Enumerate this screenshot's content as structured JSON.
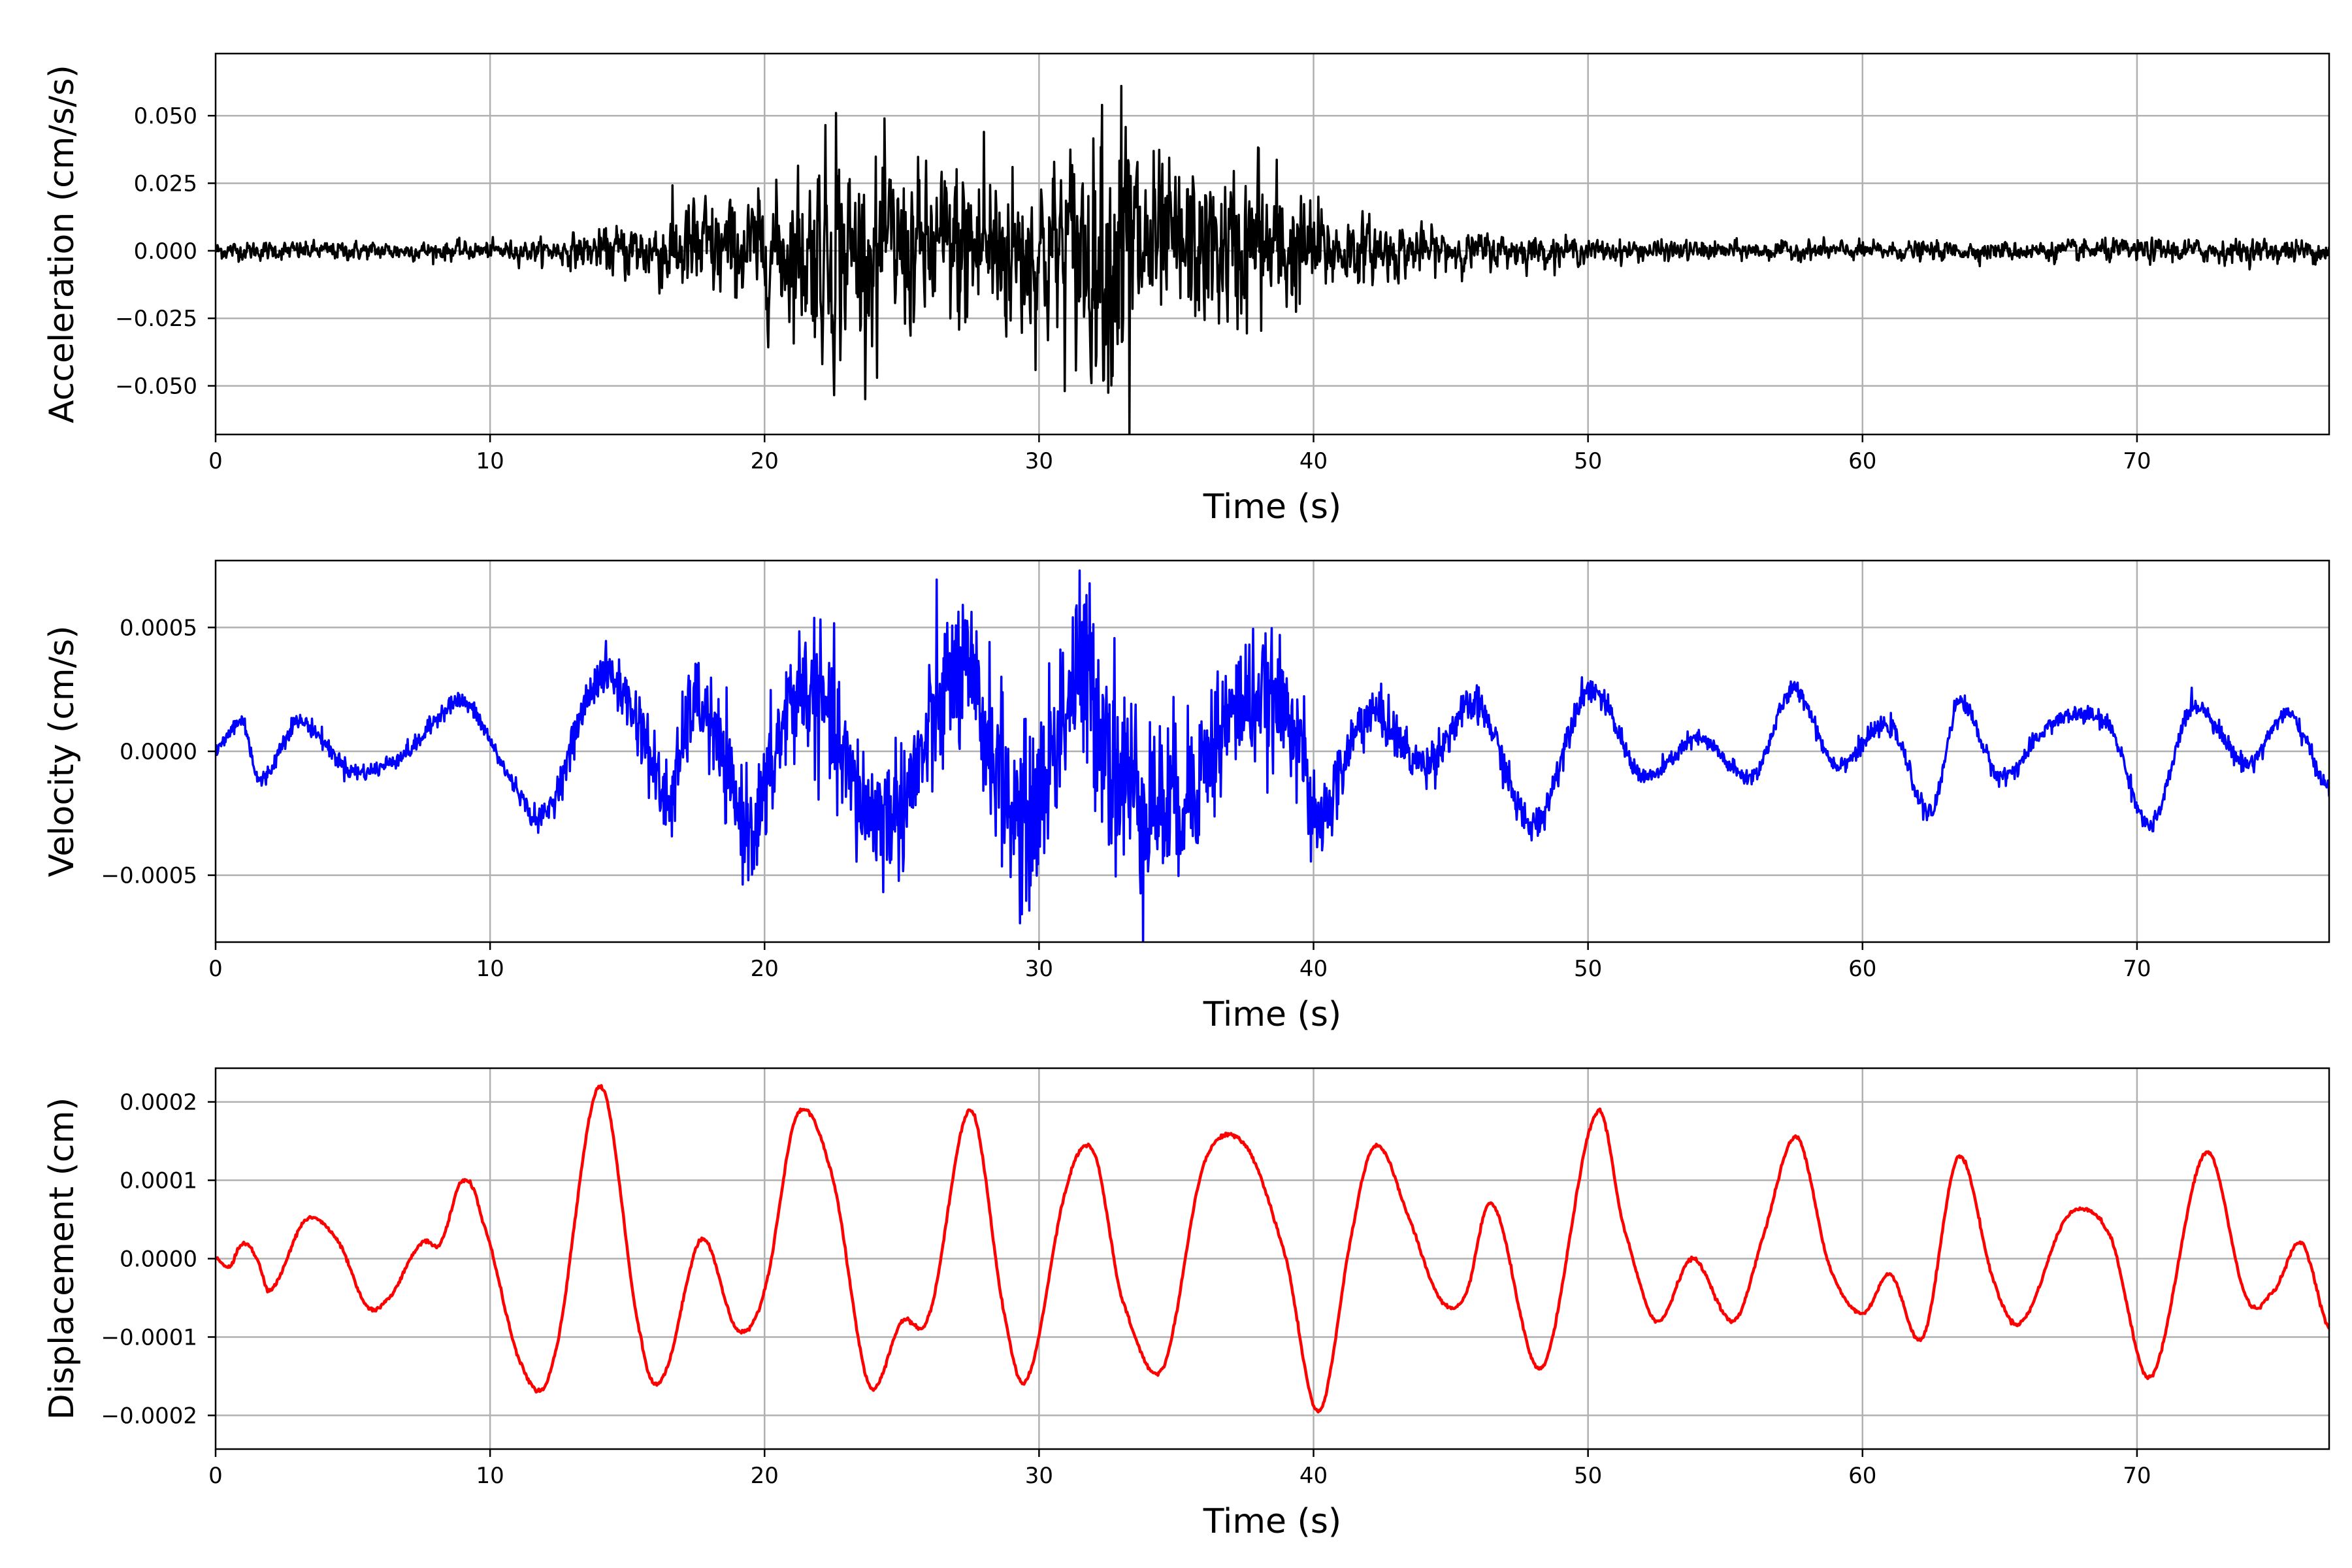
{
  "figure": {
    "background": "#ffffff",
    "grid_color": "#b0b0b0"
  },
  "chart_data": [
    {
      "type": "line",
      "title": "",
      "xlabel": "Time (s)",
      "ylabel": "Acceleration (cm/s/s)",
      "xlim": [
        0,
        77
      ],
      "ylim": [
        -0.068,
        0.073
      ],
      "grid": true,
      "x_ticks": [
        0,
        10,
        20,
        30,
        40,
        50,
        60,
        70
      ],
      "x_tick_labels": [
        "0",
        "10",
        "20",
        "30",
        "40",
        "50",
        "60",
        "70"
      ],
      "y_ticks": [
        0.05,
        0.025,
        0,
        -0.025,
        -0.05
      ],
      "y_tick_labels": [
        "0.050",
        "0.025",
        "0.000",
        "−0.025",
        "−0.050"
      ],
      "series": [
        {
          "color": "#000000",
          "x": [
            0,
            5,
            10,
            12,
            14,
            16,
            17.5,
            19,
            20.5,
            22,
            22.5,
            23.5,
            24.5,
            26,
            27.5,
            28.5,
            30,
            31.5,
            32.5,
            33.2,
            34,
            35.5,
            37,
            38,
            39,
            40,
            41,
            42,
            44,
            46,
            48,
            50,
            55,
            60,
            65,
            70,
            73,
            77
          ],
          "envelope": [
            0.004,
            0.004,
            0.004,
            0.005,
            0.009,
            0.016,
            0.025,
            0.022,
            0.028,
            0.044,
            0.05,
            0.035,
            0.04,
            0.034,
            0.044,
            0.04,
            0.038,
            0.05,
            0.056,
            0.066,
            0.04,
            0.036,
            0.033,
            0.04,
            0.032,
            0.022,
            0.017,
            0.014,
            0.01,
            0.008,
            0.007,
            0.005,
            0.004,
            0.004,
            0.004,
            0.005,
            0.005,
            0.005
          ],
          "peaks": [
            {
              "x": 22.6,
              "y": 0.051
            },
            {
              "x": 24.1,
              "y": -0.047
            },
            {
              "x": 32.3,
              "y": 0.054
            },
            {
              "x": 33.0,
              "y": 0.061
            },
            {
              "x": 33.3,
              "y": -0.068
            },
            {
              "x": 28.0,
              "y": 0.044
            },
            {
              "x": 38.0,
              "y": 0.038
            }
          ]
        }
      ]
    },
    {
      "type": "line",
      "title": "",
      "xlabel": "Time (s)",
      "ylabel": "Velocity (cm/s)",
      "xlim": [
        0,
        77
      ],
      "ylim": [
        -0.00077,
        0.00077
      ],
      "grid": true,
      "x_ticks": [
        0,
        10,
        20,
        30,
        40,
        50,
        60,
        70
      ],
      "x_tick_labels": [
        "0",
        "10",
        "20",
        "30",
        "40",
        "50",
        "60",
        "70"
      ],
      "y_ticks": [
        0.0005,
        0,
        -0.0005
      ],
      "y_tick_labels": [
        "0.0005",
        "0.0000",
        "−0.0005"
      ],
      "series": [
        {
          "color": "#0000ff",
          "x": [
            0,
            1,
            1.6,
            3,
            5,
            7,
            9,
            11,
            12,
            14,
            15.5,
            16.5,
            17.5,
            19.5,
            21,
            22,
            23.5,
            25,
            27,
            28,
            29.5,
            31.5,
            33,
            35,
            37.5,
            39.5,
            40,
            42,
            44,
            46,
            48,
            50,
            52,
            54,
            56,
            57.5,
            59,
            61,
            62.5,
            63.5,
            65,
            67,
            69,
            70.5,
            72,
            74,
            75.5,
            77
          ],
          "y": [
            0.0,
            0.00012,
            -0.00012,
            0.00012,
            -8e-05,
            0.0,
            0.0002,
            -0.00015,
            -0.00025,
            0.0003,
            0.0001,
            -0.0002,
            0.0002,
            -0.0003,
            0.0002,
            0.0002,
            -0.0002,
            -0.0002,
            0.0003,
            0.0001,
            -0.0003,
            0.0003,
            -0.0001,
            -0.0002,
            0.0002,
            0.0001,
            -0.0003,
            0.00015,
            -5e-05,
            0.00018,
            -0.0003,
            0.00025,
            -0.0001,
            5e-05,
            -0.0001,
            0.00025,
            -5e-05,
            0.0001,
            -0.00025,
            0.0002,
            -0.0001,
            0.00012,
            0.0001,
            -0.0003,
            0.00018,
            -5e-05,
            0.00015,
            -0.00015
          ],
          "noise_envelope": [
            2e-05,
            2e-05,
            2e-05,
            2e-05,
            2e-05,
            2e-05,
            2e-05,
            2e-05,
            3e-05,
            5e-05,
            8e-05,
            0.0001,
            0.0001,
            0.00012,
            0.00015,
            0.00015,
            0.00015,
            0.00015,
            0.00018,
            0.00018,
            0.0002,
            0.00022,
            0.00025,
            0.00018,
            0.00015,
            0.00012,
            0.0001,
            6e-05,
            5e-05,
            4e-05,
            4e-05,
            3e-05,
            2e-05,
            2e-05,
            2e-05,
            2e-05,
            2e-05,
            2e-05,
            2e-05,
            2e-05,
            2e-05,
            2e-05,
            2e-05,
            2e-05,
            2e-05,
            2e-05,
            2e-05,
            2e-05
          ]
        }
      ]
    },
    {
      "type": "line",
      "title": "",
      "xlabel": "Time (s)",
      "ylabel": "Displacement (cm)",
      "xlim": [
        0,
        77
      ],
      "ylim": [
        -0.000243,
        0.000243
      ],
      "grid": true,
      "x_ticks": [
        0,
        10,
        20,
        30,
        40,
        50,
        60,
        70
      ],
      "x_tick_labels": [
        "0",
        "10",
        "20",
        "30",
        "40",
        "50",
        "60",
        "70"
      ],
      "y_ticks": [
        0.0002,
        0.0001,
        0,
        -0.0001,
        -0.0002
      ],
      "y_tick_labels": [
        "0.0002",
        "0.0001",
        "0.0000",
        "−0.0001",
        "−0.0002"
      ],
      "series": [
        {
          "color": "#ff0000",
          "x": [
            0,
            0.5,
            1.0,
            1.5,
            2.0,
            3.3,
            4.5,
            5.5,
            6.3,
            7.5,
            8.2,
            9.0,
            9.7,
            11.2,
            12.3,
            14.0,
            15.5,
            16.3,
            17.7,
            19.0,
            20.0,
            21.2,
            22.5,
            23.8,
            25.0,
            26.0,
            27.5,
            28.8,
            29.6,
            31.0,
            32.0,
            33.0,
            34.5,
            36.0,
            37.5,
            39.0,
            40.2,
            41.5,
            42.3,
            43.5,
            44.6,
            45.5,
            46.5,
            48.3,
            50.3,
            51.3,
            52.5,
            53.8,
            55.3,
            56.3,
            57.6,
            58.8,
            60.0,
            61.0,
            62.2,
            63.5,
            64.8,
            65.8,
            67.5,
            69.0,
            70.5,
            72.5,
            74.0,
            75.0,
            76.0,
            77.0
          ],
          "y": [
            0.0,
            -1e-05,
            2e-05,
            0.0,
            -4e-05,
            5e-05,
            2e-05,
            -6e-05,
            -5e-05,
            2e-05,
            2e-05,
            0.0001,
            5e-05,
            -0.00014,
            -0.00013,
            0.00022,
            -0.0001,
            -0.00015,
            2.5e-05,
            -9e-05,
            -4e-05,
            0.000185,
            0.0001,
            -0.00016,
            -8e-05,
            -7e-05,
            0.00019,
            -8e-05,
            -0.00015,
            9e-05,
            0.000135,
            -5e-05,
            -0.00014,
            0.00012,
            0.000145,
            0.0,
            -0.000195,
            5e-05,
            0.000145,
            5e-05,
            -5e-05,
            -5e-05,
            7e-05,
            -0.00014,
            0.000185,
            4e-05,
            -8e-05,
            0.0,
            -8e-05,
            2e-05,
            0.000155,
            -1e-05,
            -7e-05,
            -2e-05,
            -0.0001,
            0.00013,
            -3e-05,
            -8e-05,
            5.5e-05,
            3e-05,
            -0.00015,
            0.000135,
            -5e-05,
            -4e-05,
            2e-05,
            -9e-05
          ]
        }
      ]
    }
  ]
}
